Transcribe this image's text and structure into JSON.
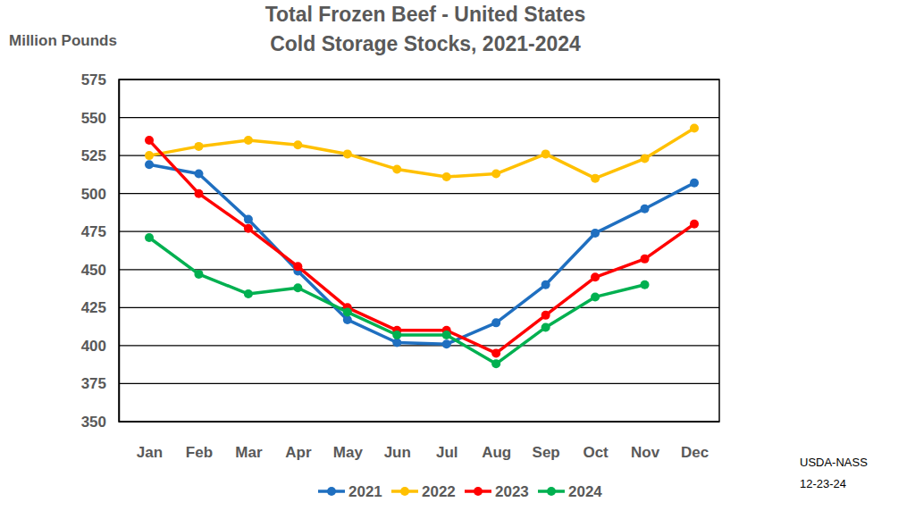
{
  "chart_data": {
    "type": "line",
    "title": "Total Frozen Beef - United States",
    "subtitle": "Cold Storage Stocks, 2021-2024",
    "ylabel": "Million Pounds",
    "annotations": [
      "USDA-NASS",
      "12-23-24"
    ],
    "categories": [
      "Jan",
      "Feb",
      "Mar",
      "Apr",
      "May",
      "Jun",
      "Jul",
      "Aug",
      "Sep",
      "Oct",
      "Nov",
      "Dec"
    ],
    "series": [
      {
        "name": "2021",
        "color": "#1f6fc0",
        "values": [
          519,
          513,
          483,
          449,
          417,
          402,
          401,
          415,
          440,
          474,
          490,
          507
        ]
      },
      {
        "name": "2022",
        "color": "#ffc000",
        "values": [
          525,
          531,
          535,
          532,
          526,
          516,
          511,
          513,
          526,
          510,
          523,
          543
        ]
      },
      {
        "name": "2023",
        "color": "#ff0000",
        "values": [
          535,
          500,
          477,
          452,
          425,
          410,
          410,
          395,
          420,
          445,
          457,
          480
        ]
      },
      {
        "name": "2024",
        "color": "#00b050",
        "values": [
          471,
          447,
          434,
          438,
          422,
          407,
          407,
          388,
          412,
          432,
          440,
          null
        ]
      }
    ],
    "ylim": [
      350,
      575
    ],
    "yticks": [
      350,
      375,
      400,
      425,
      450,
      475,
      500,
      525,
      550,
      575
    ],
    "grid": true,
    "legend": "bottom",
    "marker": "circle"
  }
}
